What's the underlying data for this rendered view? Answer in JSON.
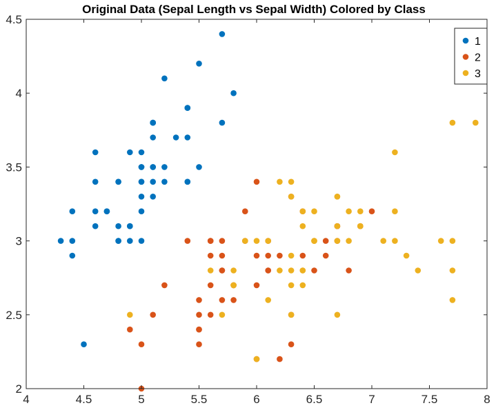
{
  "chart_data": {
    "type": "scatter",
    "title": "Original Data (Sepal Length vs Sepal Width) Colored by Class",
    "xlabel": "",
    "ylabel": "",
    "xlim": [
      4,
      8
    ],
    "ylim": [
      2,
      4.5
    ],
    "xticks": [
      4,
      4.5,
      5,
      5.5,
      6,
      6.5,
      7,
      7.5,
      8
    ],
    "xtick_labels": [
      "4",
      "4.5",
      "5",
      "5.5",
      "6",
      "6.5",
      "7",
      "7.5",
      "8"
    ],
    "yticks": [
      2,
      2.5,
      3,
      3.5,
      4,
      4.5
    ],
    "ytick_labels": [
      "2",
      "2.5",
      "3",
      "3.5",
      "4",
      "4.5"
    ],
    "grid": false,
    "legend_position": "top-right",
    "series": [
      {
        "name": "1",
        "color": "#0072BD",
        "points": [
          [
            5.1,
            3.5
          ],
          [
            4.9,
            3.0
          ],
          [
            4.7,
            3.2
          ],
          [
            4.6,
            3.1
          ],
          [
            5.0,
            3.6
          ],
          [
            5.4,
            3.9
          ],
          [
            4.6,
            3.4
          ],
          [
            5.0,
            3.4
          ],
          [
            4.4,
            2.9
          ],
          [
            4.9,
            3.1
          ],
          [
            5.4,
            3.7
          ],
          [
            4.8,
            3.4
          ],
          [
            4.8,
            3.0
          ],
          [
            4.3,
            3.0
          ],
          [
            5.8,
            4.0
          ],
          [
            5.7,
            4.4
          ],
          [
            5.4,
            3.9
          ],
          [
            5.1,
            3.5
          ],
          [
            5.7,
            3.8
          ],
          [
            5.1,
            3.8
          ],
          [
            5.4,
            3.4
          ],
          [
            5.1,
            3.7
          ],
          [
            4.6,
            3.6
          ],
          [
            5.1,
            3.3
          ],
          [
            4.8,
            3.4
          ],
          [
            5.0,
            3.0
          ],
          [
            5.0,
            3.4
          ],
          [
            5.2,
            3.5
          ],
          [
            5.2,
            3.4
          ],
          [
            4.7,
            3.2
          ],
          [
            4.8,
            3.1
          ],
          [
            5.4,
            3.4
          ],
          [
            5.2,
            4.1
          ],
          [
            5.5,
            4.2
          ],
          [
            4.9,
            3.1
          ],
          [
            5.0,
            3.2
          ],
          [
            5.5,
            3.5
          ],
          [
            4.9,
            3.6
          ],
          [
            4.4,
            3.0
          ],
          [
            5.1,
            3.4
          ],
          [
            5.0,
            3.5
          ],
          [
            4.5,
            2.3
          ],
          [
            4.4,
            3.2
          ],
          [
            5.0,
            3.5
          ],
          [
            5.1,
            3.8
          ],
          [
            4.8,
            3.0
          ],
          [
            5.1,
            3.8
          ],
          [
            4.6,
            3.2
          ],
          [
            5.3,
            3.7
          ],
          [
            5.0,
            3.3
          ]
        ]
      },
      {
        "name": "2",
        "color": "#D95319",
        "points": [
          [
            7.0,
            3.2
          ],
          [
            6.4,
            3.2
          ],
          [
            6.9,
            3.1
          ],
          [
            5.5,
            2.3
          ],
          [
            6.5,
            2.8
          ],
          [
            5.7,
            2.8
          ],
          [
            6.3,
            3.3
          ],
          [
            4.9,
            2.4
          ],
          [
            6.6,
            2.9
          ],
          [
            5.2,
            2.7
          ],
          [
            5.0,
            2.0
          ],
          [
            5.9,
            3.0
          ],
          [
            6.0,
            2.2
          ],
          [
            6.1,
            2.9
          ],
          [
            5.6,
            2.9
          ],
          [
            6.7,
            3.1
          ],
          [
            5.6,
            3.0
          ],
          [
            5.8,
            2.7
          ],
          [
            6.2,
            2.2
          ],
          [
            5.6,
            2.5
          ],
          [
            5.9,
            3.2
          ],
          [
            6.1,
            2.8
          ],
          [
            6.3,
            2.5
          ],
          [
            6.1,
            2.8
          ],
          [
            6.4,
            2.9
          ],
          [
            6.6,
            3.0
          ],
          [
            6.8,
            2.8
          ],
          [
            6.7,
            3.0
          ],
          [
            6.0,
            2.9
          ],
          [
            5.7,
            2.6
          ],
          [
            5.5,
            2.4
          ],
          [
            5.5,
            2.4
          ],
          [
            5.8,
            2.7
          ],
          [
            6.0,
            2.7
          ],
          [
            5.4,
            3.0
          ],
          [
            6.0,
            3.4
          ],
          [
            6.7,
            3.1
          ],
          [
            6.3,
            2.3
          ],
          [
            5.6,
            3.0
          ],
          [
            5.5,
            2.5
          ],
          [
            5.5,
            2.6
          ],
          [
            6.1,
            3.0
          ],
          [
            5.8,
            2.6
          ],
          [
            5.0,
            2.3
          ],
          [
            5.6,
            2.7
          ],
          [
            5.7,
            3.0
          ],
          [
            5.7,
            2.9
          ],
          [
            6.2,
            2.9
          ],
          [
            5.1,
            2.5
          ],
          [
            5.7,
            2.8
          ]
        ]
      },
      {
        "name": "3",
        "color": "#EDB120",
        "points": [
          [
            6.3,
            3.3
          ],
          [
            5.8,
            2.7
          ],
          [
            7.1,
            3.0
          ],
          [
            6.3,
            2.9
          ],
          [
            6.5,
            3.0
          ],
          [
            7.6,
            3.0
          ],
          [
            4.9,
            2.5
          ],
          [
            7.3,
            2.9
          ],
          [
            6.7,
            2.5
          ],
          [
            7.2,
            3.6
          ],
          [
            6.5,
            3.2
          ],
          [
            6.4,
            2.7
          ],
          [
            6.8,
            3.0
          ],
          [
            5.7,
            2.5
          ],
          [
            5.8,
            2.8
          ],
          [
            6.4,
            3.2
          ],
          [
            6.5,
            3.0
          ],
          [
            7.7,
            3.8
          ],
          [
            7.7,
            2.6
          ],
          [
            6.0,
            2.2
          ],
          [
            6.9,
            3.2
          ],
          [
            5.6,
            2.8
          ],
          [
            7.7,
            2.8
          ],
          [
            6.3,
            2.7
          ],
          [
            6.7,
            3.3
          ],
          [
            7.2,
            3.2
          ],
          [
            6.2,
            2.8
          ],
          [
            6.1,
            3.0
          ],
          [
            6.4,
            2.8
          ],
          [
            7.2,
            3.0
          ],
          [
            7.4,
            2.8
          ],
          [
            7.9,
            3.8
          ],
          [
            6.4,
            2.8
          ],
          [
            6.3,
            2.8
          ],
          [
            6.1,
            2.6
          ],
          [
            7.7,
            3.0
          ],
          [
            6.3,
            3.4
          ],
          [
            6.4,
            3.1
          ],
          [
            6.0,
            3.0
          ],
          [
            6.9,
            3.1
          ],
          [
            6.7,
            3.1
          ],
          [
            6.9,
            3.1
          ],
          [
            5.8,
            2.7
          ],
          [
            6.8,
            3.2
          ],
          [
            6.7,
            3.3
          ],
          [
            6.7,
            3.0
          ],
          [
            6.3,
            2.5
          ],
          [
            6.5,
            3.0
          ],
          [
            6.2,
            3.4
          ],
          [
            5.9,
            3.0
          ]
        ]
      }
    ]
  }
}
